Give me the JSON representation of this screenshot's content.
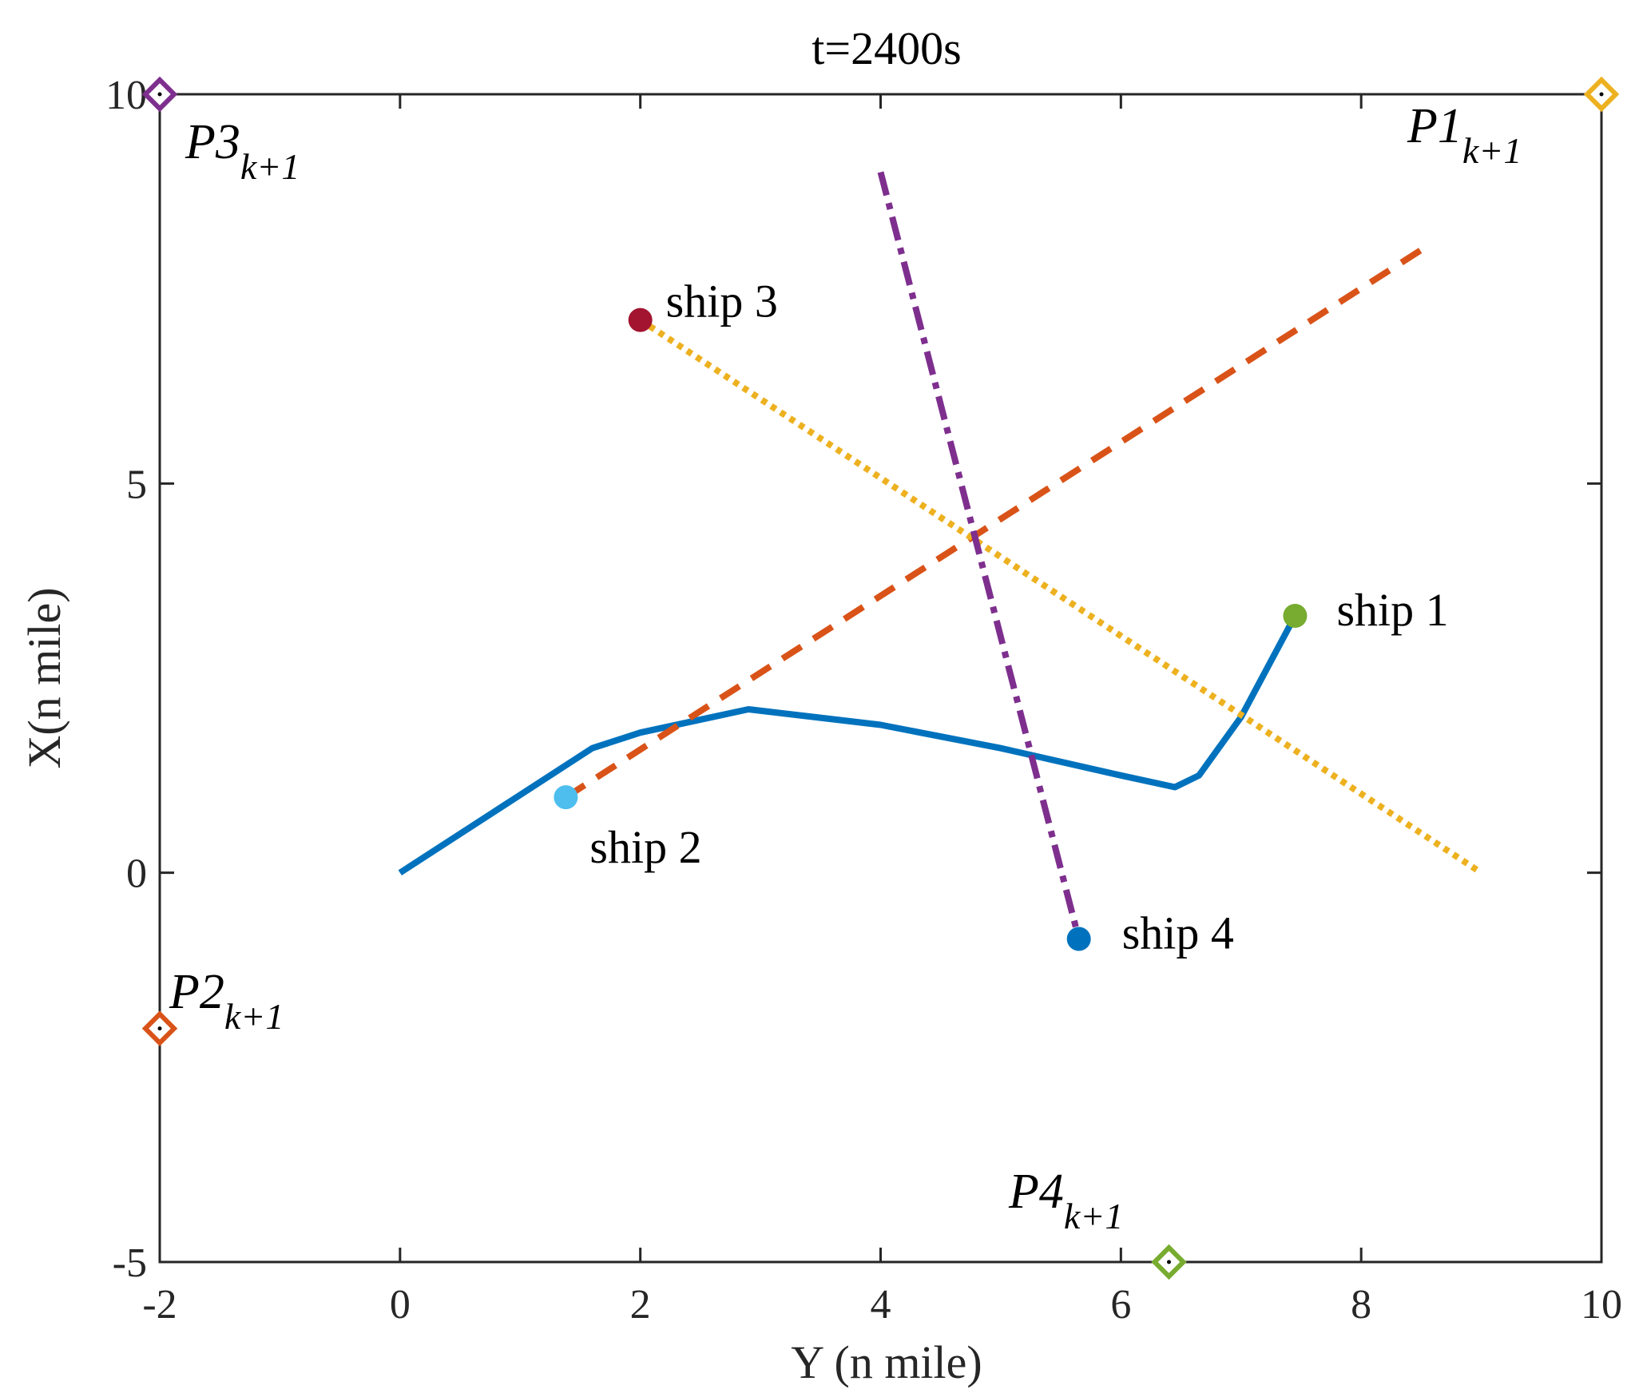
{
  "chart_data": {
    "type": "line",
    "title": "t=2400s",
    "xlabel": "Y (n mile)",
    "ylabel": "X(n mile)",
    "xlim": [
      -2,
      10
    ],
    "ylim": [
      -5,
      10
    ],
    "xticks": [
      "-2",
      "0",
      "2",
      "4",
      "6",
      "8",
      "10"
    ],
    "yticks": [
      "-5",
      "0",
      "5",
      "10"
    ],
    "grid": false,
    "series": [
      {
        "color": "#0072BD",
        "style": "solid",
        "points": [
          [
            0,
            0
          ],
          [
            1.6,
            1.6
          ],
          [
            2.0,
            1.8
          ],
          [
            2.9,
            2.1
          ],
          [
            4.0,
            1.9
          ],
          [
            5.0,
            1.6
          ],
          [
            6.0,
            1.25
          ],
          [
            6.45,
            1.1
          ],
          [
            6.65,
            1.25
          ],
          [
            7.0,
            2.0
          ],
          [
            7.45,
            3.3
          ]
        ],
        "end_marker_color": "#77AC30"
      },
      {
        "color": "#D95319",
        "style": "dashed",
        "points": [
          [
            1.38,
            0.97
          ],
          [
            8.5,
            8.0
          ]
        ],
        "end_marker_color": "#4DBEEE"
      },
      {
        "color": "#EDB120",
        "style": "dotted",
        "points": [
          [
            2.0,
            7.1
          ],
          [
            9.0,
            0.0
          ]
        ],
        "end_marker_color": "#A2142F"
      },
      {
        "color": "#7E2F8E",
        "style": "dashdot",
        "points": [
          [
            4.0,
            9.0
          ],
          [
            5.65,
            -0.85
          ]
        ],
        "end_marker_color": "#0072BD"
      }
    ],
    "ships": [
      {
        "label": "ship 1",
        "x": 7.45,
        "y": 3.3,
        "color": "#77AC30"
      },
      {
        "label": "ship 2",
        "x": 1.38,
        "y": 0.97,
        "color": "#4DBEEE"
      },
      {
        "label": "ship 3",
        "x": 2.0,
        "y": 7.1,
        "color": "#A2142F"
      },
      {
        "label": "ship 4",
        "x": 5.65,
        "y": -0.85,
        "color": "#0072BD"
      }
    ],
    "targets": [
      {
        "name": "P1",
        "sub": "k+1",
        "x": 10,
        "y": 10,
        "color": "#EDB120"
      },
      {
        "name": "P2",
        "sub": "k+1",
        "x": -2,
        "y": -2,
        "color": "#D95319"
      },
      {
        "name": "P3",
        "sub": "k+1",
        "x": -2,
        "y": 10,
        "color": "#7E2F8E"
      },
      {
        "name": "P4",
        "sub": "k+1",
        "x": 6.4,
        "y": -5,
        "color": "#77AC30"
      }
    ]
  }
}
